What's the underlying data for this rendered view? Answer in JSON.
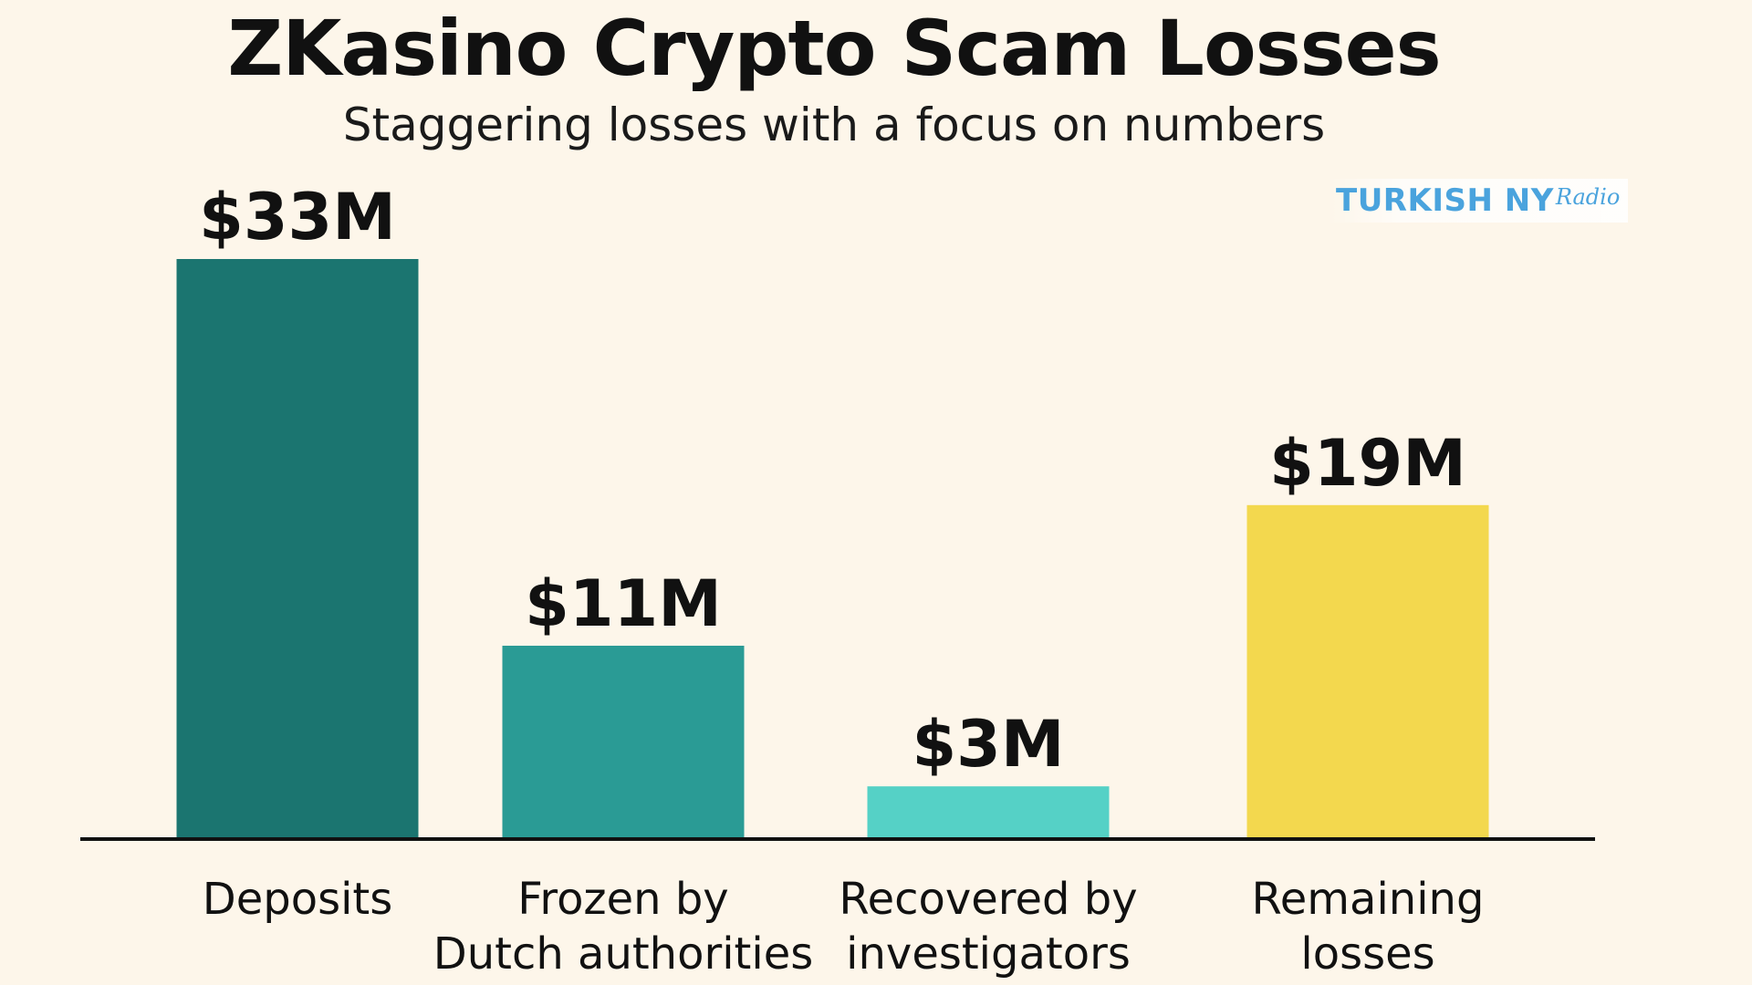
{
  "title": "ZKasino Crypto Scam Losses",
  "subtitle": "Staggering losses with a focus on numbers",
  "brand": {
    "main": "TURKISH NY",
    "script": "Radio"
  },
  "colors": {
    "background": "#fdf6ea",
    "axis": "#111111",
    "bars": [
      "#1b7570",
      "#2a9b95",
      "#55d1c6",
      "#f3d84e"
    ]
  },
  "chart_data": {
    "type": "bar",
    "title": "ZKasino Crypto Scam Losses",
    "subtitle": "Staggering losses with a focus on numbers",
    "categories": [
      [
        "Deposits"
      ],
      [
        "Frozen by",
        "Dutch authorities"
      ],
      [
        "Recovered by",
        "investigators"
      ],
      [
        "Remaining",
        "losses"
      ]
    ],
    "values": [
      33,
      11,
      3,
      19
    ],
    "value_labels": [
      "$33M",
      "$11M",
      "$3M",
      "$19M"
    ],
    "xlabel": "",
    "ylabel": "",
    "grid": false,
    "legend": "none"
  }
}
